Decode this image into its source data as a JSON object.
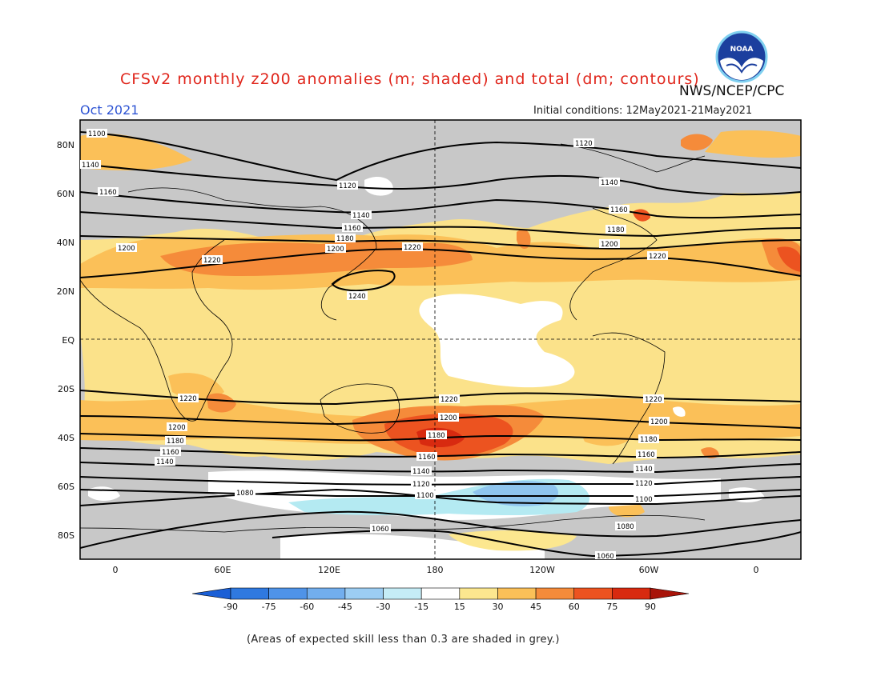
{
  "header": {
    "title": "CFSv2 monthly z200 anomalies (m; shaded) and total (dm; contours)",
    "agency": "NWS/NCEP/CPC",
    "month": "Oct 2021",
    "initial_conditions": "Initial conditions: 12May2021-21May2021",
    "logo_text": "NOAA"
  },
  "map": {
    "lat_labels": [
      "80N",
      "60N",
      "40N",
      "20N",
      "EQ",
      "20S",
      "40S",
      "60S",
      "80S"
    ],
    "lon_labels": [
      "0",
      "60E",
      "120E",
      "180",
      "120W",
      "60W",
      "0"
    ],
    "contour_labels": [
      "1060",
      "1080",
      "1100",
      "1120",
      "1140",
      "1160",
      "1180",
      "1200",
      "1220",
      "1240"
    ],
    "colors": {
      "skill_grey": "#c8c8c8",
      "ocean_land_bg": "#fbe28a",
      "pos_15_30": "#fce78f",
      "pos_30_45": "#fbc058",
      "pos_45_60": "#f58b3a",
      "pos_60_75": "#ec5320",
      "pos_75_90": "#d82a10",
      "neg_15": "#ffffff",
      "neg_30": "#b4eaf2",
      "neg_45": "#8fc5ee"
    }
  },
  "colorbar": {
    "ticks": [
      "-90",
      "-75",
      "-60",
      "-45",
      "-30",
      "-15",
      "15",
      "30",
      "45",
      "60",
      "75",
      "90"
    ],
    "colors": [
      "#1a5fd6",
      "#2f79e0",
      "#4f93e8",
      "#72aeee",
      "#9ccdf3",
      "#c5ecf6",
      "#ffffff",
      "#fce78f",
      "#fbc058",
      "#f58b3a",
      "#ec5320",
      "#d82a10",
      "#a8140a"
    ]
  },
  "footnote": "(Areas of expected skill less than 0.3 are shaded in grey.)"
}
